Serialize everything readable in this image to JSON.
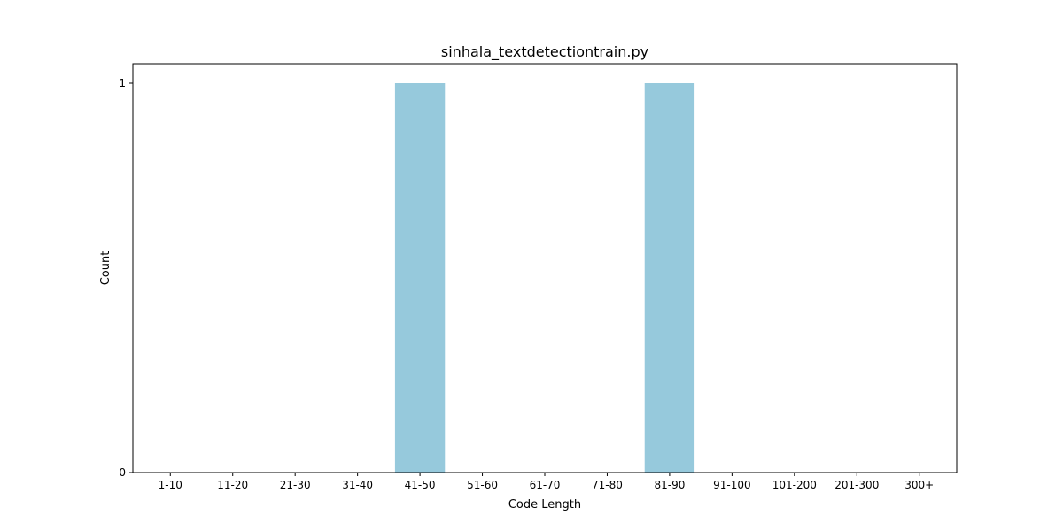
{
  "chart_data": {
    "type": "bar",
    "title": "sinhala_textdetectiontrain.py",
    "xlabel": "Code Length",
    "ylabel": "Count",
    "categories": [
      "1-10",
      "11-20",
      "21-30",
      "31-40",
      "41-50",
      "51-60",
      "61-70",
      "71-80",
      "81-90",
      "91-100",
      "101-200",
      "201-300",
      "300+"
    ],
    "values": [
      0,
      0,
      0,
      0,
      1,
      0,
      0,
      0,
      1,
      0,
      0,
      0,
      0
    ],
    "ylim": [
      0,
      1.05
    ],
    "yticks": [
      0,
      1
    ],
    "bar_color": "#96c9dc",
    "grid": false,
    "legend": "none"
  }
}
